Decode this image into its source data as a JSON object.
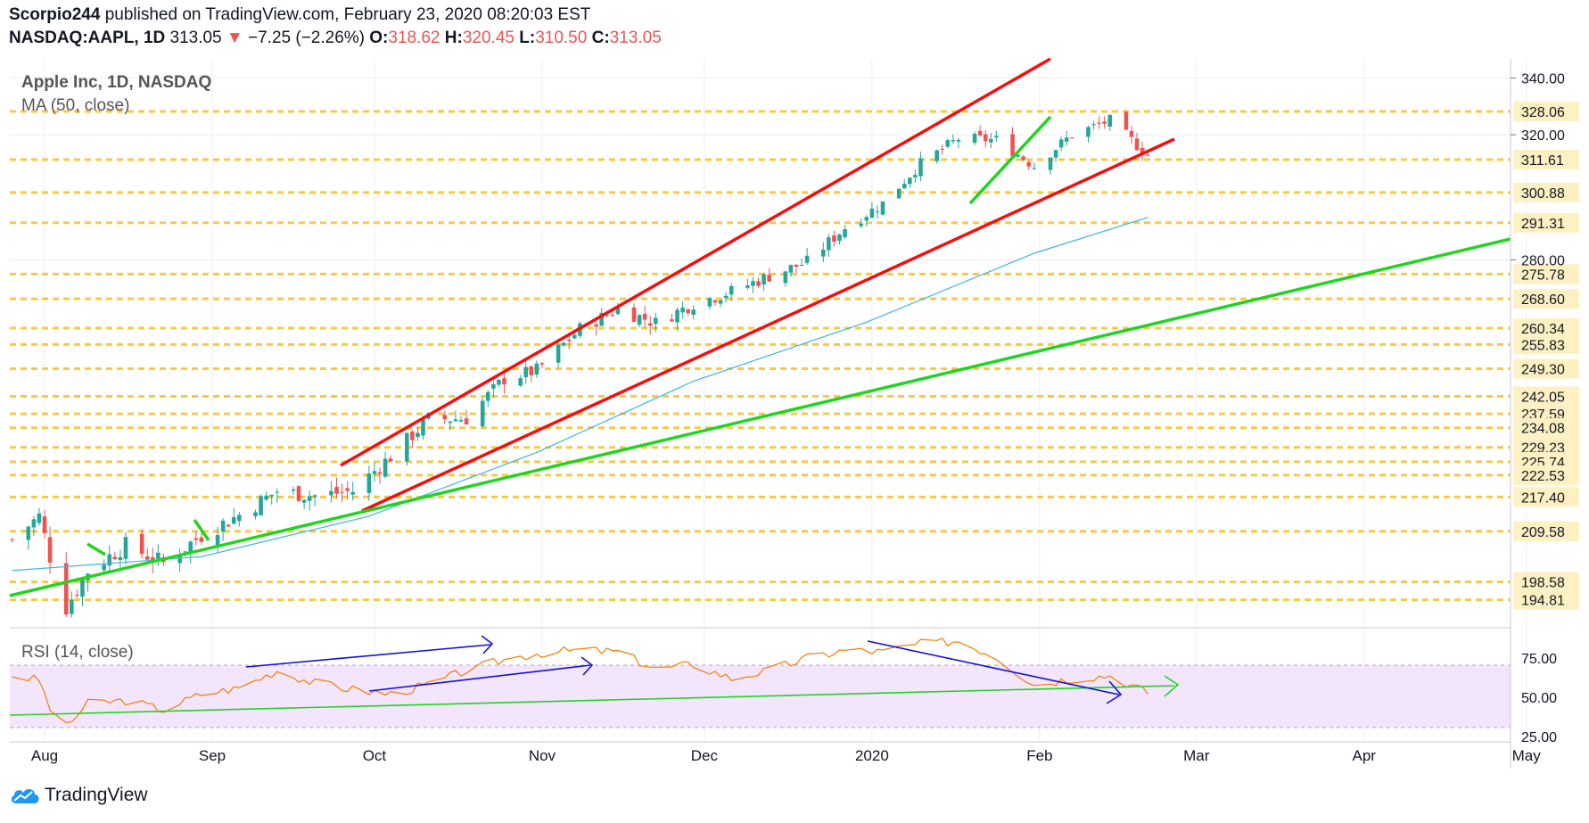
{
  "header": {
    "author": "Scorpio244",
    "published_text": "published on TradingView.com, February 23, 2020 08:20:03 EST",
    "symbol": "NASDAQ:AAPL, 1D",
    "last": "313.05",
    "arrow": "▼",
    "change": "−7.25 (−2.26%)",
    "o_label": "O:",
    "o_value": "318.62",
    "h_label": "H:",
    "h_value": "320.45",
    "l_label": "L:",
    "l_value": "310.50",
    "c_label": "C:",
    "c_value": "313.05"
  },
  "legend": {
    "title": "Apple Inc, 1D, NASDAQ",
    "ma": "MA (50, close)",
    "rsi": "RSI (14, close)"
  },
  "footer": {
    "brand": "TradingView"
  },
  "colors": {
    "up": "#26a69a",
    "down": "#ef5350",
    "ma": "#3bb3e4",
    "rsi": "#f57c00",
    "channel": "#f20f0f",
    "trend": "#22d422",
    "level": "#f7c948",
    "rsi_annot": "#1010d8",
    "rsi_band": "#f3e5fb"
  },
  "chart_data": [
    {
      "type": "candlestick",
      "title": "Apple Inc, 1D, NASDAQ",
      "price_ylim": [
        190,
        347
      ],
      "y_ticks": [
        "340.00",
        "320.00",
        "280.00"
      ],
      "level_labels": [
        "328.06",
        "311.61",
        "300.88",
        "291.31",
        "275.78",
        "268.60",
        "260.34",
        "255.83",
        "249.30",
        "242.05",
        "237.59",
        "234.08",
        "229.23",
        "225.74",
        "222.53",
        "217.40",
        "209.58",
        "198.58",
        "194.81"
      ],
      "x_labels": [
        {
          "label": "Aug",
          "date": "2019-08-01"
        },
        {
          "label": "Sep",
          "date": "2019-09-01"
        },
        {
          "label": "Oct",
          "date": "2019-10-01"
        },
        {
          "label": "Nov",
          "date": "2019-11-01"
        },
        {
          "label": "Dec",
          "date": "2019-12-01"
        },
        {
          "label": "2020",
          "date": "2020-01-01"
        },
        {
          "label": "Feb",
          "date": "2020-02-01"
        },
        {
          "label": "Mar",
          "date": "2020-03-01"
        },
        {
          "label": "Apr",
          "date": "2020-04-01"
        },
        {
          "label": "May",
          "date": "2020-05-01"
        }
      ],
      "price_close_points": [
        [
          "2019-07-26",
          207.7
        ],
        [
          "2019-07-31",
          213.0
        ],
        [
          "2019-08-02",
          204.0
        ],
        [
          "2019-08-05",
          193.3
        ],
        [
          "2019-08-09",
          200.9
        ],
        [
          "2019-08-16",
          206.5
        ],
        [
          "2019-08-23",
          202.6
        ],
        [
          "2019-08-30",
          208.7
        ],
        [
          "2019-09-06",
          213.3
        ],
        [
          "2019-09-13",
          218.8
        ],
        [
          "2019-09-20",
          217.7
        ],
        [
          "2019-09-27",
          218.8
        ],
        [
          "2019-10-04",
          227.0
        ],
        [
          "2019-10-11",
          236.2
        ],
        [
          "2019-10-18",
          236.4
        ],
        [
          "2019-10-25",
          246.6
        ],
        [
          "2019-10-31",
          248.8
        ],
        [
          "2019-11-08",
          260.1
        ],
        [
          "2019-11-15",
          265.8
        ],
        [
          "2019-11-22",
          261.8
        ],
        [
          "2019-11-29",
          267.3
        ],
        [
          "2019-12-06",
          270.7
        ],
        [
          "2019-12-13",
          275.2
        ],
        [
          "2019-12-20",
          279.4
        ],
        [
          "2019-12-27",
          289.8
        ],
        [
          "2020-01-03",
          297.4
        ],
        [
          "2020-01-10",
          310.3
        ],
        [
          "2020-01-17",
          318.7
        ],
        [
          "2020-01-24",
          318.3
        ],
        [
          "2020-01-31",
          309.5
        ],
        [
          "2020-02-07",
          320.0
        ],
        [
          "2020-02-14",
          324.9
        ],
        [
          "2020-02-21",
          313.05
        ]
      ],
      "ma_points": [
        [
          "2019-07-26",
          201.0
        ],
        [
          "2019-08-30",
          204.0
        ],
        [
          "2019-09-30",
          213.0
        ],
        [
          "2019-10-31",
          228.0
        ],
        [
          "2019-11-29",
          246.0
        ],
        [
          "2019-12-31",
          262.0
        ],
        [
          "2020-01-31",
          282.0
        ],
        [
          "2020-02-21",
          293.0
        ]
      ],
      "rsi_ylim": [
        25,
        90
      ],
      "rsi_ticks": [
        "75.00",
        "50.00",
        "25.00"
      ],
      "rsi_points": [
        [
          "2019-07-26",
          64
        ],
        [
          "2019-07-31",
          61
        ],
        [
          "2019-08-02",
          43
        ],
        [
          "2019-08-05",
          31
        ],
        [
          "2019-08-09",
          46
        ],
        [
          "2019-08-16",
          48
        ],
        [
          "2019-08-23",
          42
        ],
        [
          "2019-08-30",
          52
        ],
        [
          "2019-09-06",
          56
        ],
        [
          "2019-09-13",
          67
        ],
        [
          "2019-09-20",
          59
        ],
        [
          "2019-09-27",
          55
        ],
        [
          "2019-10-04",
          52
        ],
        [
          "2019-10-11",
          58
        ],
        [
          "2019-10-18",
          67
        ],
        [
          "2019-10-25",
          74
        ],
        [
          "2019-10-31",
          78
        ],
        [
          "2019-11-08",
          80
        ],
        [
          "2019-11-15",
          79
        ],
        [
          "2019-11-22",
          68
        ],
        [
          "2019-11-29",
          71
        ],
        [
          "2019-12-06",
          62
        ],
        [
          "2019-12-13",
          67
        ],
        [
          "2019-12-20",
          75
        ],
        [
          "2019-12-27",
          80
        ],
        [
          "2020-01-03",
          79
        ],
        [
          "2020-01-10",
          84
        ],
        [
          "2020-01-17",
          86
        ],
        [
          "2020-01-24",
          76
        ],
        [
          "2020-01-31",
          58
        ],
        [
          "2020-02-07",
          62
        ],
        [
          "2020-02-14",
          64
        ],
        [
          "2020-02-21",
          53
        ]
      ]
    }
  ]
}
